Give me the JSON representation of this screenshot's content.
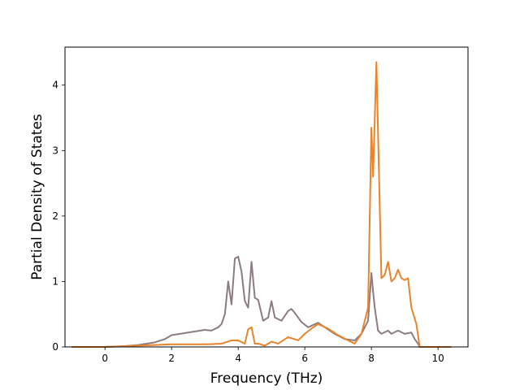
{
  "chart_data": {
    "type": "line",
    "xlabel": "Frequency (THz)",
    "ylabel": "Partial Density of States",
    "xlim": [
      -1.2,
      10.9
    ],
    "ylim": [
      0,
      4.58
    ],
    "xticks": [
      0,
      2,
      4,
      6,
      8,
      10
    ],
    "yticks": [
      0,
      1,
      2,
      3,
      4
    ],
    "grid": false,
    "series": [
      {
        "color": "#8c7c82",
        "points": [
          [
            -1.0,
            0
          ],
          [
            0,
            0
          ],
          [
            0.5,
            0.01
          ],
          [
            1.0,
            0.03
          ],
          [
            1.5,
            0.07
          ],
          [
            1.8,
            0.12
          ],
          [
            2.0,
            0.18
          ],
          [
            2.5,
            0.22
          ],
          [
            3.0,
            0.26
          ],
          [
            3.2,
            0.25
          ],
          [
            3.4,
            0.3
          ],
          [
            3.5,
            0.35
          ],
          [
            3.6,
            0.5
          ],
          [
            3.7,
            1.0
          ],
          [
            3.8,
            0.65
          ],
          [
            3.9,
            1.35
          ],
          [
            4.0,
            1.38
          ],
          [
            4.1,
            1.15
          ],
          [
            4.2,
            0.7
          ],
          [
            4.3,
            0.6
          ],
          [
            4.4,
            1.3
          ],
          [
            4.5,
            0.75
          ],
          [
            4.6,
            0.72
          ],
          [
            4.75,
            0.4
          ],
          [
            4.9,
            0.45
          ],
          [
            5.0,
            0.7
          ],
          [
            5.1,
            0.45
          ],
          [
            5.3,
            0.4
          ],
          [
            5.5,
            0.55
          ],
          [
            5.6,
            0.58
          ],
          [
            5.7,
            0.52
          ],
          [
            5.9,
            0.38
          ],
          [
            6.1,
            0.3
          ],
          [
            6.4,
            0.37
          ],
          [
            6.6,
            0.3
          ],
          [
            6.9,
            0.2
          ],
          [
            7.2,
            0.12
          ],
          [
            7.5,
            0.1
          ],
          [
            7.7,
            0.2
          ],
          [
            7.9,
            0.4
          ],
          [
            8.0,
            1.13
          ],
          [
            8.05,
            0.85
          ],
          [
            8.1,
            0.6
          ],
          [
            8.2,
            0.25
          ],
          [
            8.3,
            0.2
          ],
          [
            8.5,
            0.25
          ],
          [
            8.6,
            0.2
          ],
          [
            8.8,
            0.25
          ],
          [
            9.0,
            0.2
          ],
          [
            9.2,
            0.22
          ],
          [
            9.3,
            0.12
          ],
          [
            9.4,
            0.05
          ],
          [
            9.45,
            0
          ],
          [
            10.4,
            0
          ]
        ]
      },
      {
        "color": "#e8842b",
        "points": [
          [
            -1.0,
            0
          ],
          [
            0,
            0
          ],
          [
            1.0,
            0.02
          ],
          [
            1.5,
            0.03
          ],
          [
            2.0,
            0.04
          ],
          [
            2.5,
            0.04
          ],
          [
            3.0,
            0.04
          ],
          [
            3.5,
            0.05
          ],
          [
            3.8,
            0.1
          ],
          [
            4.0,
            0.1
          ],
          [
            4.2,
            0.05
          ],
          [
            4.3,
            0.27
          ],
          [
            4.4,
            0.3
          ],
          [
            4.5,
            0.05
          ],
          [
            4.6,
            0.05
          ],
          [
            4.8,
            0.02
          ],
          [
            5.0,
            0.08
          ],
          [
            5.2,
            0.05
          ],
          [
            5.5,
            0.15
          ],
          [
            5.8,
            0.1
          ],
          [
            6.0,
            0.2
          ],
          [
            6.2,
            0.28
          ],
          [
            6.4,
            0.35
          ],
          [
            6.7,
            0.28
          ],
          [
            7.0,
            0.18
          ],
          [
            7.3,
            0.1
          ],
          [
            7.5,
            0.05
          ],
          [
            7.7,
            0.2
          ],
          [
            7.9,
            0.6
          ],
          [
            8.0,
            3.35
          ],
          [
            8.05,
            2.6
          ],
          [
            8.15,
            4.35
          ],
          [
            8.3,
            1.05
          ],
          [
            8.4,
            1.1
          ],
          [
            8.5,
            1.3
          ],
          [
            8.6,
            1.0
          ],
          [
            8.7,
            1.05
          ],
          [
            8.8,
            1.18
          ],
          [
            8.9,
            1.05
          ],
          [
            9.0,
            1.02
          ],
          [
            9.1,
            1.05
          ],
          [
            9.2,
            0.6
          ],
          [
            9.35,
            0.35
          ],
          [
            9.45,
            0
          ],
          [
            10.4,
            0
          ]
        ]
      }
    ]
  }
}
